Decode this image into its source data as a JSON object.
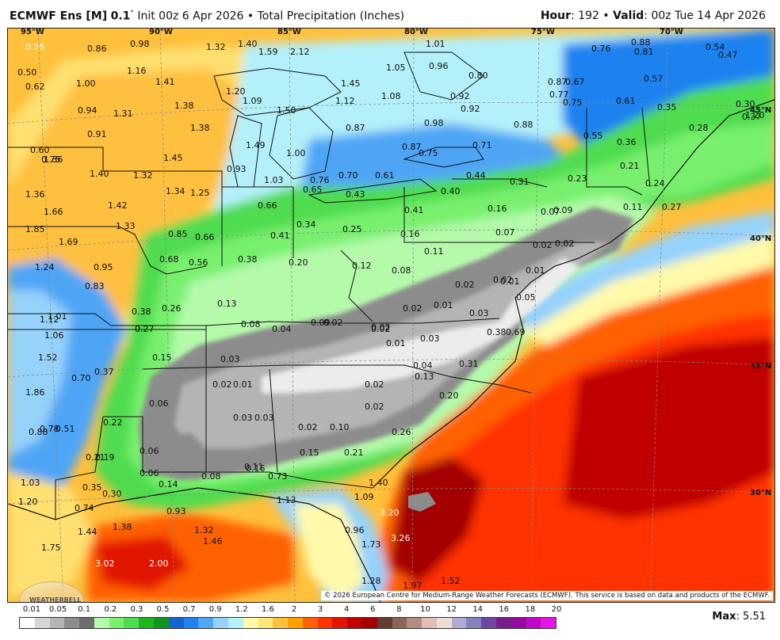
{
  "header": {
    "model": "ECMWF Ens [M]",
    "resolution": "0.1",
    "init": "Init 00z 6 Apr 2026",
    "separator": "•",
    "field": "Total Precipitation (Inches)",
    "hour_label": "Hour",
    "hour": "192",
    "valid_label": "Valid",
    "valid": "00z Tue 14 Apr 2026"
  },
  "map": {
    "longitude_labels": [
      "95°W",
      "90°W",
      "85°W",
      "80°W",
      "75°W",
      "70°W"
    ],
    "latitude_labels": [
      "45°N",
      "40°N",
      "35°N",
      "30°N"
    ],
    "credit": "© 2026 European Centre for Medium-Range Weather Forecasts (ECMWF). This service is based on data and products of the ECMWF.",
    "logo_text": "WEATHERBELL",
    "values": [
      "0.55",
      "0.86",
      "0.98",
      "1.32",
      "1.40",
      "1.59",
      "2.12",
      "1.01",
      "0.76",
      "0.88",
      "0.81",
      "0.54",
      "0.47",
      "0.50",
      "0.62",
      "1.16",
      "1.41",
      "1.05",
      "0.96",
      "0.80",
      "0.87",
      "0.67",
      "0.57",
      "1.00",
      "1.38",
      "1.20",
      "1.09",
      "1.50",
      "1.12",
      "1.45",
      "1.08",
      "0.92",
      "0.77",
      "0.75",
      "0.61",
      "0.35",
      "0.30",
      "0.94",
      "1.31",
      "0.92",
      "0.98",
      "0.88",
      "0.28",
      "1.20",
      "0.37",
      "0.91",
      "1.38",
      "1.49",
      "0.87",
      "0.87",
      "0.75",
      "0.71",
      "0.55",
      "0.36",
      "0.60",
      "1.36",
      "1.00",
      "0.75",
      "1.45",
      "0.93",
      "0.21",
      "1.40",
      "1.32",
      "1.34",
      "1.25",
      "1.03",
      "0.76",
      "0.70",
      "0.61",
      "0.44",
      "0.31",
      "0.23",
      "0.24",
      "1.36",
      "0.65",
      "0.43",
      "0.40",
      "1.66",
      "1.42",
      "0.66",
      "0.41",
      "0.16",
      "0.07",
      "0.09",
      "0.11",
      "0.27",
      "1.85",
      "1.33",
      "0.34",
      "0.25",
      "0.07",
      "1.69",
      "0.85",
      "0.66",
      "0.41",
      "0.16",
      "0.02",
      "0.02",
      "0.68",
      "0.56",
      "0.38",
      "0.20",
      "0.11",
      "0.12",
      "0.01",
      "1.24",
      "0.95",
      "0.08",
      "0.02",
      "0.02",
      "0.01",
      "0.83",
      "0.13",
      "0.02",
      "0.01",
      "0.05",
      "0.38",
      "0.26",
      "0.08",
      "0.04",
      "0.09",
      "0.02",
      "0.02",
      "0.03",
      "1.12",
      "1.01",
      "0.27",
      "0.02",
      "0.01",
      "0.03",
      "0.38",
      "0.69",
      "1.06",
      "0.15",
      "0.03",
      "0.04",
      "0.31",
      "1.52",
      "0.37",
      "0.13",
      "0.70",
      "0.02",
      "0.01",
      "0.02",
      "0.20",
      "1.86",
      "0.06",
      "0.03",
      "0.03",
      "0.02",
      "0.88",
      "0.78",
      "0.51",
      "0.22",
      "0.02",
      "0.10",
      "0.26",
      "0.06",
      "0.15",
      "0.21",
      "0.21",
      "0.19",
      "0.06",
      "0.11",
      "0.16",
      "1.03",
      "0.35",
      "0.14",
      "0.08",
      "0.73",
      "1.20",
      "0.30",
      "1.40",
      "0.74",
      "1.13",
      "1.09",
      "0.93",
      "3.20",
      "1.44",
      "1.38",
      "1.32",
      "0.96",
      "1.75",
      "1.46",
      "1.73",
      "3.26",
      "3.02",
      "2.00",
      "1.28",
      "1.97",
      "1.52"
    ]
  },
  "legend": {
    "ticks": [
      "0.01",
      "0.05",
      "0.1",
      "0.2",
      "0.3",
      "0.5",
      "0.7",
      "0.9",
      "1.2",
      "1.6",
      "2",
      "3",
      "4",
      "6",
      "8",
      "10",
      "12",
      "14",
      "16",
      "18",
      "20"
    ],
    "colors": [
      "#ffffff",
      "#d6d6d6",
      "#b4b4b4",
      "#8c8c8c",
      "#6e6e6e",
      "#b4faaa",
      "#78f06e",
      "#50dc50",
      "#1eb41e",
      "#0f961e",
      "#1464d2",
      "#1e82f0",
      "#50a5f5",
      "#96d2fa",
      "#b4f0fa",
      "#fffaaa",
      "#ffe878",
      "#ffc03c",
      "#ffa000",
      "#ff6000",
      "#ff3200",
      "#e11400",
      "#c00000",
      "#a50000",
      "#643c32",
      "#8c645a",
      "#b48c82",
      "#e1beb4",
      "#f0dcd2",
      "#afaad2",
      "#8782be",
      "#6e46a0",
      "#781e8c",
      "#960aa0",
      "#be0ac8",
      "#e614e6"
    ],
    "max_label": "Max",
    "max_value": "5.51"
  }
}
